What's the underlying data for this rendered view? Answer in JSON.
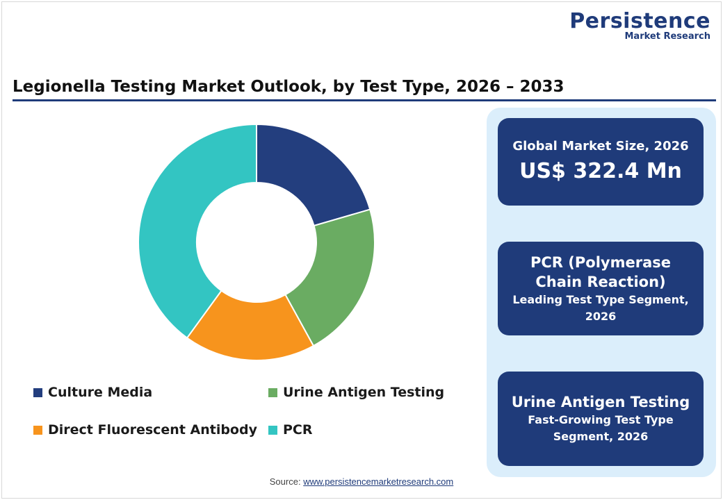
{
  "logo": {
    "main": "Persistence",
    "sub": "Market Research"
  },
  "title": "Legionella Testing Market Outlook, by Test Type, 2026 – 2033",
  "chart_data": {
    "type": "pie",
    "donut": true,
    "categories": [
      "Culture Media",
      "Urine Antigen Testing",
      "Direct Fluorescent Antibody",
      "PCR"
    ],
    "values": [
      20.5,
      21.5,
      18.0,
      40.0
    ],
    "colors": [
      "#233e7e",
      "#6aac62",
      "#f7941d",
      "#33c5c2"
    ],
    "legend_position": "bottom",
    "start_angle": "12 o'clock, clockwise"
  },
  "legend": [
    {
      "label": "Culture Media",
      "color": "#233e7e"
    },
    {
      "label": "Urine Antigen Testing",
      "color": "#6aac62"
    },
    {
      "label": "Direct Fluorescent Antibody",
      "color": "#f7941d"
    },
    {
      "label": "PCR",
      "color": "#33c5c2"
    }
  ],
  "cards": {
    "market_size": {
      "label": "Global Market Size, 2026",
      "value": "US$ 322.4 Mn"
    },
    "leading": {
      "head": "PCR (Polymerase Chain Reaction)",
      "sub": "Leading Test Type Segment, 2026"
    },
    "fastest": {
      "head": "Urine Antigen Testing",
      "sub": "Fast-Growing Test Type Segment, 2026"
    }
  },
  "source": {
    "prefix": "Source:",
    "link": "www.persistencemarketresearch.com"
  },
  "colors": {
    "brand": "#1f3b7a",
    "panel": "#dbeefb"
  }
}
